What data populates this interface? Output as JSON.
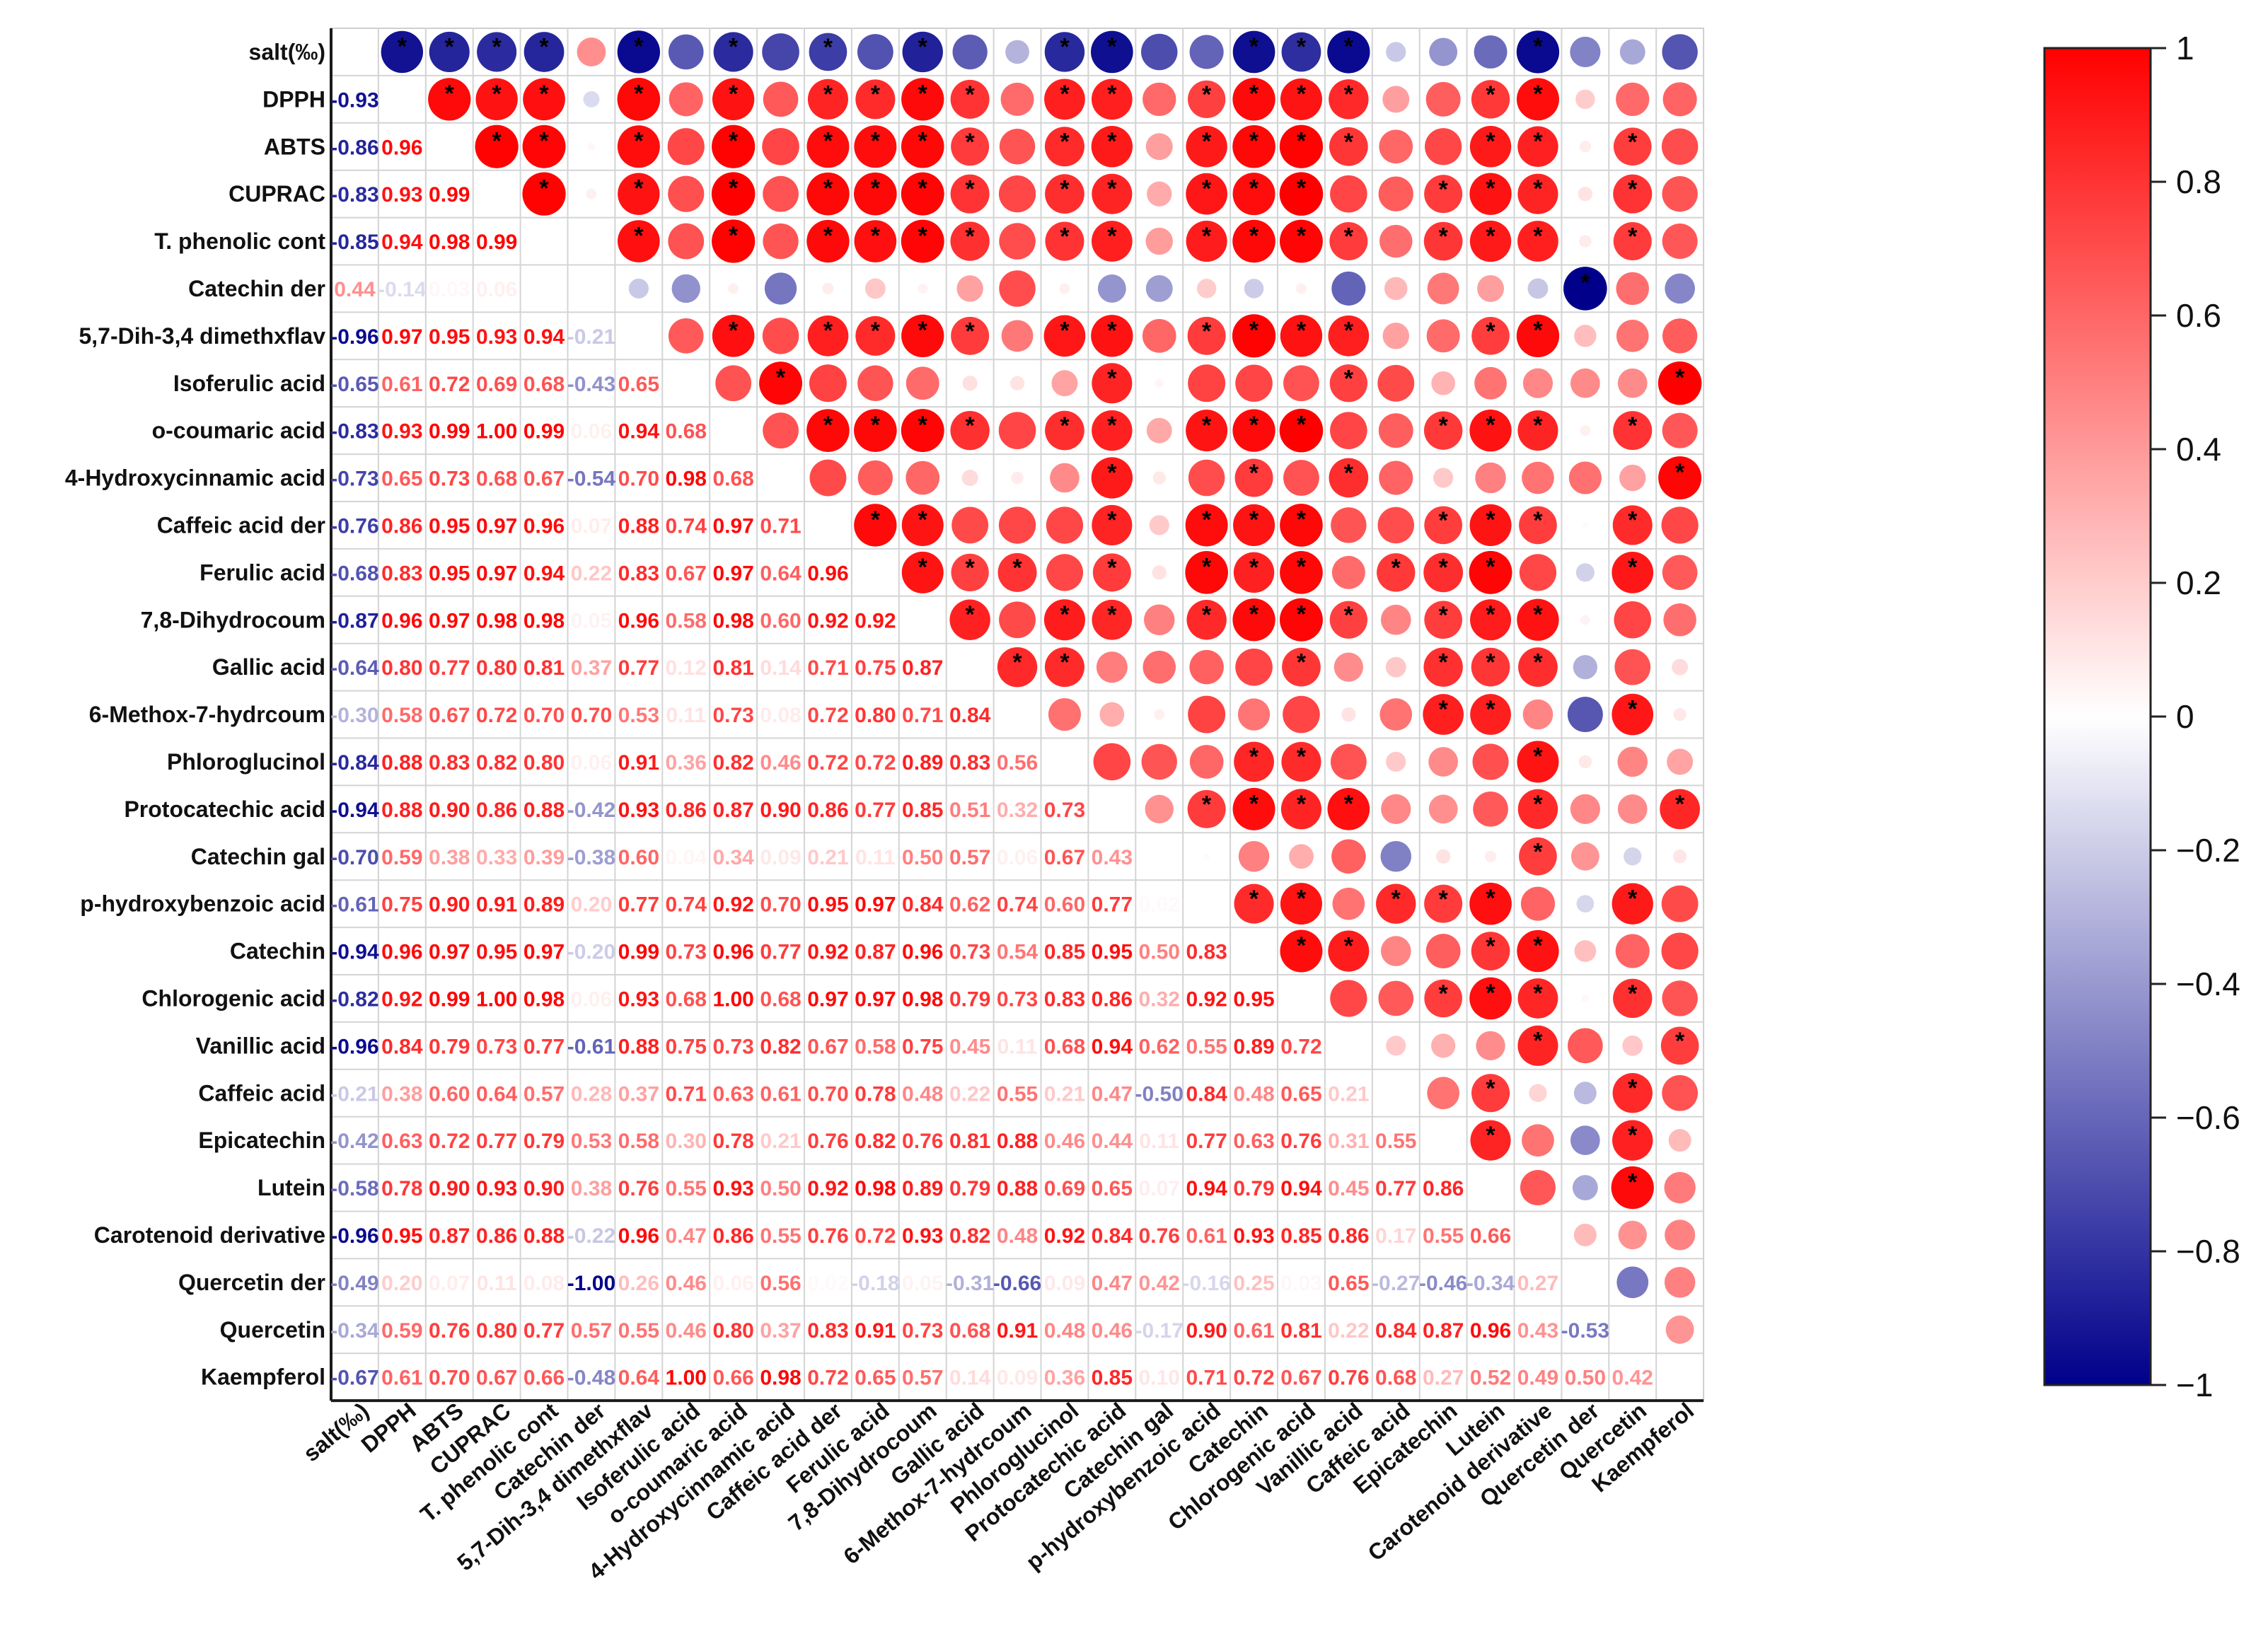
{
  "chart_data": {
    "type": "heatmap",
    "style": "correlation-matrix; upper triangle as circles sized/colored by r, lower triangle as numeric r values",
    "variables": [
      "salt(‰)",
      "DPPH",
      "ABTS",
      "CUPRAC",
      "T. phenolic cont",
      "Catechin der",
      "5,7-Dih-3,4 dimethxflav",
      "Isoferulic acid",
      "o-coumaric acid",
      "4-Hydroxycinnamic acid",
      "Caffeic acid der",
      "Ferulic acid",
      "7,8-Dihydrocoum",
      "Gallic acid",
      "6-Methox-7-hydrcoum",
      "Phloroglucinol",
      "Protocatechic acid",
      "Catechin gal",
      "p-hydroxybenzoic acid",
      "Catechin",
      "Chlorogenic acid",
      "Vanillic acid",
      "Caffeic acid",
      "Epicatechin",
      "Lutein",
      "Carotenoid derivative",
      "Quercetin der",
      "Quercetin",
      "Kaempferol"
    ],
    "lower_triangle_values": [
      [],
      [
        -0.93
      ],
      [
        -0.86,
        0.96
      ],
      [
        -0.83,
        0.93,
        0.99
      ],
      [
        -0.85,
        0.94,
        0.98,
        0.99
      ],
      [
        0.44,
        -0.14,
        0.03,
        0.06
      ],
      [
        -0.96,
        0.97,
        0.95,
        0.93,
        0.94,
        -0.21
      ],
      [
        -0.65,
        0.61,
        0.72,
        0.69,
        0.68,
        -0.43,
        0.65
      ],
      [
        -0.83,
        0.93,
        0.99,
        1.0,
        0.99,
        0.06,
        0.94,
        0.68
      ],
      [
        -0.73,
        0.65,
        0.73,
        0.68,
        0.67,
        -0.54,
        0.7,
        0.98,
        0.68
      ],
      [
        -0.76,
        0.86,
        0.95,
        0.97,
        0.96,
        0.07,
        0.88,
        0.74,
        0.97,
        0.71
      ],
      [
        -0.68,
        0.83,
        0.95,
        0.97,
        0.94,
        0.22,
        0.83,
        0.67,
        0.97,
        0.64,
        0.96
      ],
      [
        -0.87,
        0.96,
        0.97,
        0.98,
        0.98,
        0.05,
        0.96,
        0.58,
        0.98,
        0.6,
        0.92,
        0.92
      ],
      [
        -0.64,
        0.8,
        0.77,
        0.8,
        0.81,
        0.37,
        0.77,
        0.12,
        0.81,
        0.14,
        0.71,
        0.75,
        0.87
      ],
      [
        -0.3,
        0.58,
        0.67,
        0.72,
        0.7,
        0.7,
        0.53,
        0.11,
        0.73,
        0.08,
        0.72,
        0.8,
        0.71,
        0.84
      ],
      [
        -0.84,
        0.88,
        0.83,
        0.82,
        0.8,
        0.06,
        0.91,
        0.36,
        0.82,
        0.46,
        0.72,
        0.72,
        0.89,
        0.83,
        0.56
      ],
      [
        -0.94,
        0.88,
        0.9,
        0.86,
        0.88,
        -0.42,
        0.93,
        0.86,
        0.87,
        0.9,
        0.86,
        0.77,
        0.85,
        0.51,
        0.32,
        0.73
      ],
      [
        -0.7,
        0.59,
        0.38,
        0.33,
        0.39,
        -0.38,
        0.6,
        0.04,
        0.34,
        0.09,
        0.21,
        0.11,
        0.5,
        0.57,
        0.06,
        0.67,
        0.43
      ],
      [
        -0.61,
        0.75,
        0.9,
        0.91,
        0.89,
        0.2,
        0.77,
        0.74,
        0.92,
        0.7,
        0.95,
        0.97,
        0.84,
        0.62,
        0.74,
        0.6,
        0.77,
        0.02
      ],
      [
        -0.94,
        0.96,
        0.97,
        0.95,
        0.97,
        -0.2,
        0.99,
        0.73,
        0.96,
        0.77,
        0.92,
        0.87,
        0.96,
        0.73,
        0.54,
        0.85,
        0.95,
        0.5,
        0.83
      ],
      [
        -0.82,
        0.92,
        0.99,
        1.0,
        0.98,
        0.06,
        0.93,
        0.68,
        1.0,
        0.68,
        0.97,
        0.97,
        0.98,
        0.79,
        0.73,
        0.83,
        0.86,
        0.32,
        0.92,
        0.95
      ],
      [
        -0.96,
        0.84,
        0.79,
        0.73,
        0.77,
        -0.61,
        0.88,
        0.75,
        0.73,
        0.82,
        0.67,
        0.58,
        0.75,
        0.45,
        0.11,
        0.68,
        0.94,
        0.62,
        0.55,
        0.89,
        0.72
      ],
      [
        -0.21,
        0.38,
        0.6,
        0.64,
        0.57,
        0.28,
        0.37,
        0.71,
        0.63,
        0.61,
        0.7,
        0.78,
        0.48,
        0.22,
        0.55,
        0.21,
        0.47,
        -0.5,
        0.84,
        0.48,
        0.65,
        0.21
      ],
      [
        -0.42,
        0.63,
        0.72,
        0.77,
        0.79,
        0.53,
        0.58,
        0.3,
        0.78,
        0.21,
        0.76,
        0.82,
        0.76,
        0.81,
        0.88,
        0.46,
        0.44,
        0.11,
        0.77,
        0.63,
        0.76,
        0.31,
        0.55
      ],
      [
        -0.58,
        0.78,
        0.9,
        0.93,
        0.9,
        0.38,
        0.76,
        0.55,
        0.93,
        0.5,
        0.92,
        0.98,
        0.89,
        0.79,
        0.88,
        0.69,
        0.65,
        0.07,
        0.94,
        0.79,
        0.94,
        0.45,
        0.77,
        0.86
      ],
      [
        -0.96,
        0.95,
        0.87,
        0.86,
        0.88,
        -0.22,
        0.96,
        0.47,
        0.86,
        0.55,
        0.76,
        0.72,
        0.93,
        0.82,
        0.48,
        0.92,
        0.84,
        0.76,
        0.61,
        0.93,
        0.85,
        0.86,
        0.17,
        0.55,
        0.66
      ],
      [
        -0.49,
        0.2,
        0.07,
        0.11,
        0.08,
        -1.0,
        0.26,
        0.46,
        0.06,
        0.56,
        0.02,
        -0.18,
        0.05,
        -0.31,
        -0.66,
        0.09,
        0.47,
        0.42,
        -0.16,
        0.25,
        0.03,
        0.65,
        -0.27,
        -0.46,
        -0.34,
        0.27
      ],
      [
        -0.34,
        0.59,
        0.76,
        0.8,
        0.77,
        0.57,
        0.55,
        0.46,
        0.8,
        0.37,
        0.83,
        0.91,
        0.73,
        0.68,
        0.91,
        0.48,
        0.46,
        -0.17,
        0.9,
        0.61,
        0.81,
        0.22,
        0.84,
        0.87,
        0.96,
        0.43,
        -0.53
      ],
      [
        -0.67,
        0.61,
        0.7,
        0.67,
        0.66,
        -0.48,
        0.64,
        1.0,
        0.66,
        0.98,
        0.72,
        0.65,
        0.57,
        0.14,
        0.09,
        0.36,
        0.85,
        0.1,
        0.71,
        0.72,
        0.67,
        0.76,
        0.68,
        0.27,
        0.52,
        0.49,
        0.5,
        0.42
      ]
    ],
    "significance_marker": "*",
    "significance_rule": "|r| >= 0.75",
    "colorbar": {
      "min": -1,
      "max": 1,
      "ticks": [
        "1",
        "0.8",
        "0.6",
        "0.4",
        "0.2",
        "0",
        "−0.2",
        "−0.4",
        "−0.6",
        "−0.8",
        "−1"
      ],
      "colors": {
        "negative": "#00008b",
        "zero": "#ffffff",
        "positive": "#ff0000"
      }
    }
  }
}
